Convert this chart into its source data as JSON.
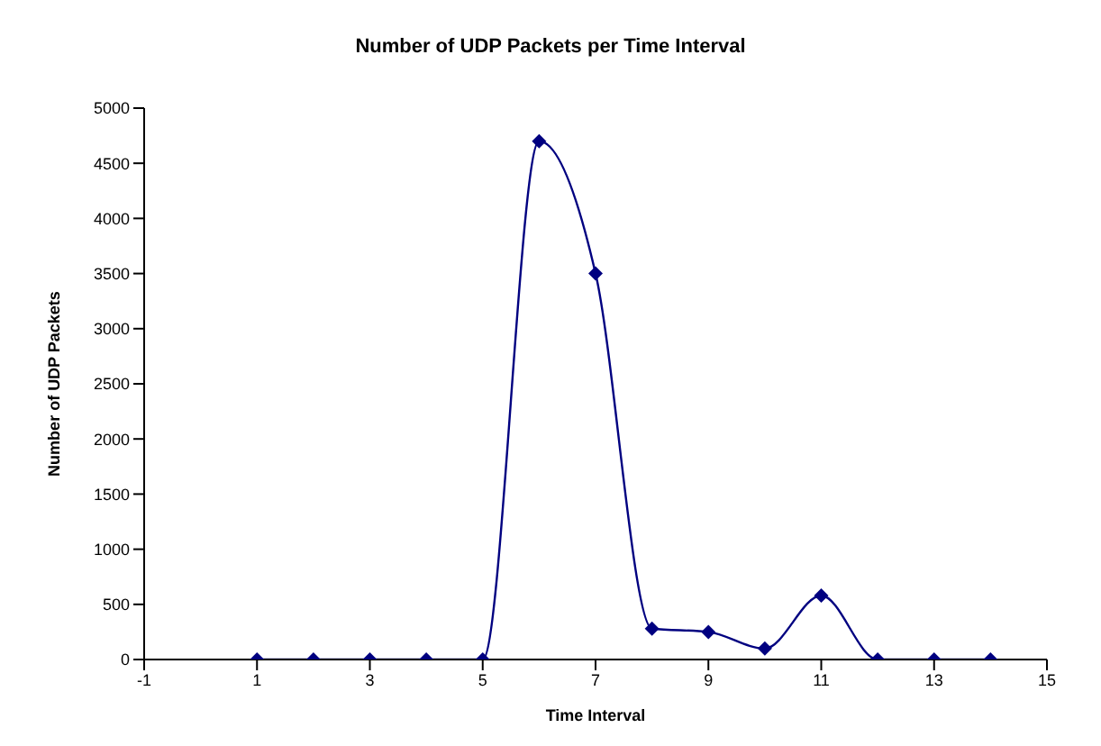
{
  "chart_data": {
    "type": "line",
    "title": "Number of UDP Packets per Time Interval",
    "xlabel": "Time Interval",
    "ylabel": "Number of UDP Packets",
    "x": [
      1,
      2,
      3,
      4,
      5,
      6,
      7,
      8,
      9,
      10,
      11,
      12,
      13,
      14
    ],
    "series": [
      {
        "color": "#000080",
        "values": [
          0,
          0,
          0,
          0,
          0,
          4700,
          3500,
          280,
          250,
          100,
          580,
          0,
          0,
          0
        ]
      }
    ],
    "xlim": [
      -1,
      15
    ],
    "xticks": [
      -1,
      1,
      3,
      5,
      7,
      9,
      11,
      13,
      15
    ],
    "ylim": [
      0,
      5000
    ],
    "yticks": [
      0,
      500,
      1000,
      1500,
      2000,
      2500,
      3000,
      3500,
      4000,
      4500,
      5000
    ],
    "grid": false,
    "legend": false,
    "marker": "diamond",
    "line_style": "solid"
  }
}
